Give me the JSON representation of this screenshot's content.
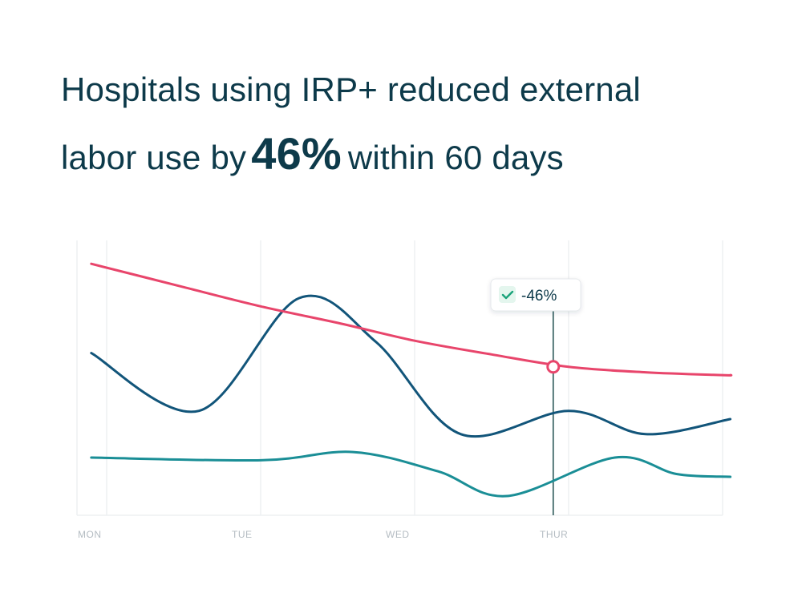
{
  "headline": {
    "line1": "Hospitals using IRP+ reduced external",
    "line2_prefix": "labor use by",
    "highlight": "46%",
    "line2_suffix": "within 60 days"
  },
  "chart_data": {
    "type": "line",
    "title": "Hospitals using IRP+ reduced external labor use by 46% within 60 days",
    "xlabel": "",
    "ylabel": "",
    "x_ticks": [
      "MON",
      "TUE",
      "WED",
      "THUR"
    ],
    "grid": "vertical",
    "colors": {
      "red_series": "#e8456b",
      "navy_series": "#12557a",
      "teal_series": "#1a8e96",
      "gridline": "#eef0f2",
      "marker_line": "#1f4f4f",
      "check": "#1aa37a",
      "check_bg": "#e4f6ee"
    },
    "x_range": [
      0,
      4.2
    ],
    "y_range": [
      0,
      100
    ],
    "series": [
      {
        "name": "red",
        "color": "#e8456b",
        "points": [
          [
            -0.1,
            91.5
          ],
          [
            0.5,
            83
          ],
          [
            1.0,
            76
          ],
          [
            1.5,
            70
          ],
          [
            2.0,
            63.5
          ],
          [
            2.5,
            58.5
          ],
          [
            3.0,
            54
          ],
          [
            3.5,
            52
          ],
          [
            4.0,
            51
          ],
          [
            4.05,
            51
          ]
        ]
      },
      {
        "name": "navy",
        "color": "#12557a",
        "points": [
          [
            -0.1,
            59
          ],
          [
            0.6,
            38
          ],
          [
            1.25,
            79
          ],
          [
            1.75,
            63
          ],
          [
            2.3,
            29.5
          ],
          [
            3.0,
            38
          ],
          [
            3.5,
            29.5
          ],
          [
            4.05,
            35
          ]
        ]
      },
      {
        "name": "teal",
        "color": "#1a8e96",
        "points": [
          [
            -0.1,
            21
          ],
          [
            1.0,
            20
          ],
          [
            1.6,
            23
          ],
          [
            2.15,
            16
          ],
          [
            2.6,
            7
          ],
          [
            3.3,
            21
          ],
          [
            3.7,
            15
          ],
          [
            4.05,
            14
          ]
        ]
      }
    ],
    "annotation": {
      "label": "-46%",
      "x": 2.9,
      "y": 54,
      "series": "red"
    }
  }
}
